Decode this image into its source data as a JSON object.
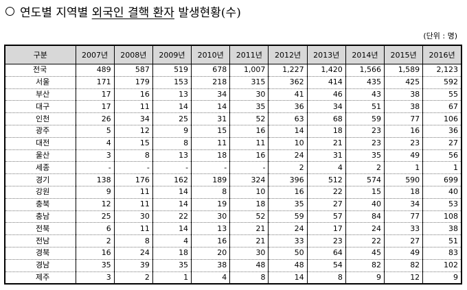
{
  "title": {
    "prefix": "연도별 지역별 ",
    "underlined": "외국인 결핵 환자",
    "suffix": " 발생현황(수)"
  },
  "unit_label": "(단위 : 명)",
  "table": {
    "header": [
      "구분",
      "2007년",
      "2008년",
      "2009년",
      "2010년",
      "2011년",
      "2012년",
      "2013년",
      "2014년",
      "2015년",
      "2016년"
    ],
    "rows": [
      {
        "region": "전국",
        "values": [
          "489",
          "587",
          "519",
          "678",
          "1,007",
          "1,227",
          "1,420",
          "1,566",
          "1,589",
          "2,123"
        ]
      },
      {
        "region": "서울",
        "values": [
          "171",
          "179",
          "153",
          "218",
          "315",
          "362",
          "414",
          "435",
          "425",
          "592"
        ]
      },
      {
        "region": "부산",
        "values": [
          "17",
          "16",
          "13",
          "34",
          "30",
          "41",
          "46",
          "43",
          "38",
          "55"
        ]
      },
      {
        "region": "대구",
        "values": [
          "17",
          "11",
          "14",
          "14",
          "35",
          "36",
          "34",
          "51",
          "38",
          "67"
        ]
      },
      {
        "region": "인천",
        "values": [
          "26",
          "34",
          "25",
          "31",
          "52",
          "63",
          "68",
          "59",
          "77",
          "106"
        ]
      },
      {
        "region": "광주",
        "values": [
          "5",
          "12",
          "9",
          "15",
          "16",
          "14",
          "18",
          "23",
          "16",
          "36"
        ]
      },
      {
        "region": "대전",
        "values": [
          "4",
          "15",
          "8",
          "11",
          "11",
          "10",
          "21",
          "23",
          "23",
          "27"
        ]
      },
      {
        "region": "울산",
        "values": [
          "3",
          "8",
          "13",
          "18",
          "16",
          "24",
          "31",
          "35",
          "49",
          "56"
        ]
      },
      {
        "region": "세종",
        "values": [
          "-",
          "-",
          "-",
          "-",
          "-",
          "2",
          "4",
          "2",
          "1",
          "1"
        ]
      },
      {
        "region": "경기",
        "values": [
          "138",
          "176",
          "162",
          "189",
          "324",
          "396",
          "512",
          "574",
          "590",
          "699"
        ]
      },
      {
        "region": "강원",
        "values": [
          "9",
          "11",
          "14",
          "8",
          "10",
          "16",
          "22",
          "15",
          "18",
          "40"
        ]
      },
      {
        "region": "충북",
        "values": [
          "12",
          "11",
          "14",
          "19",
          "18",
          "35",
          "27",
          "40",
          "34",
          "53"
        ]
      },
      {
        "region": "충남",
        "values": [
          "25",
          "30",
          "22",
          "30",
          "52",
          "59",
          "57",
          "84",
          "77",
          "108"
        ]
      },
      {
        "region": "전북",
        "values": [
          "6",
          "11",
          "14",
          "13",
          "21",
          "24",
          "17",
          "24",
          "33",
          "38"
        ]
      },
      {
        "region": "전남",
        "values": [
          "2",
          "8",
          "4",
          "16",
          "21",
          "33",
          "23",
          "22",
          "27",
          "51"
        ]
      },
      {
        "region": "경북",
        "values": [
          "16",
          "24",
          "18",
          "20",
          "30",
          "50",
          "64",
          "45",
          "49",
          "83"
        ]
      },
      {
        "region": "경남",
        "values": [
          "35",
          "39",
          "35",
          "38",
          "48",
          "48",
          "54",
          "82",
          "82",
          "102"
        ]
      },
      {
        "region": "제주",
        "values": [
          "3",
          "2",
          "1",
          "4",
          "8",
          "14",
          "8",
          "9",
          "12",
          "9"
        ]
      }
    ]
  }
}
